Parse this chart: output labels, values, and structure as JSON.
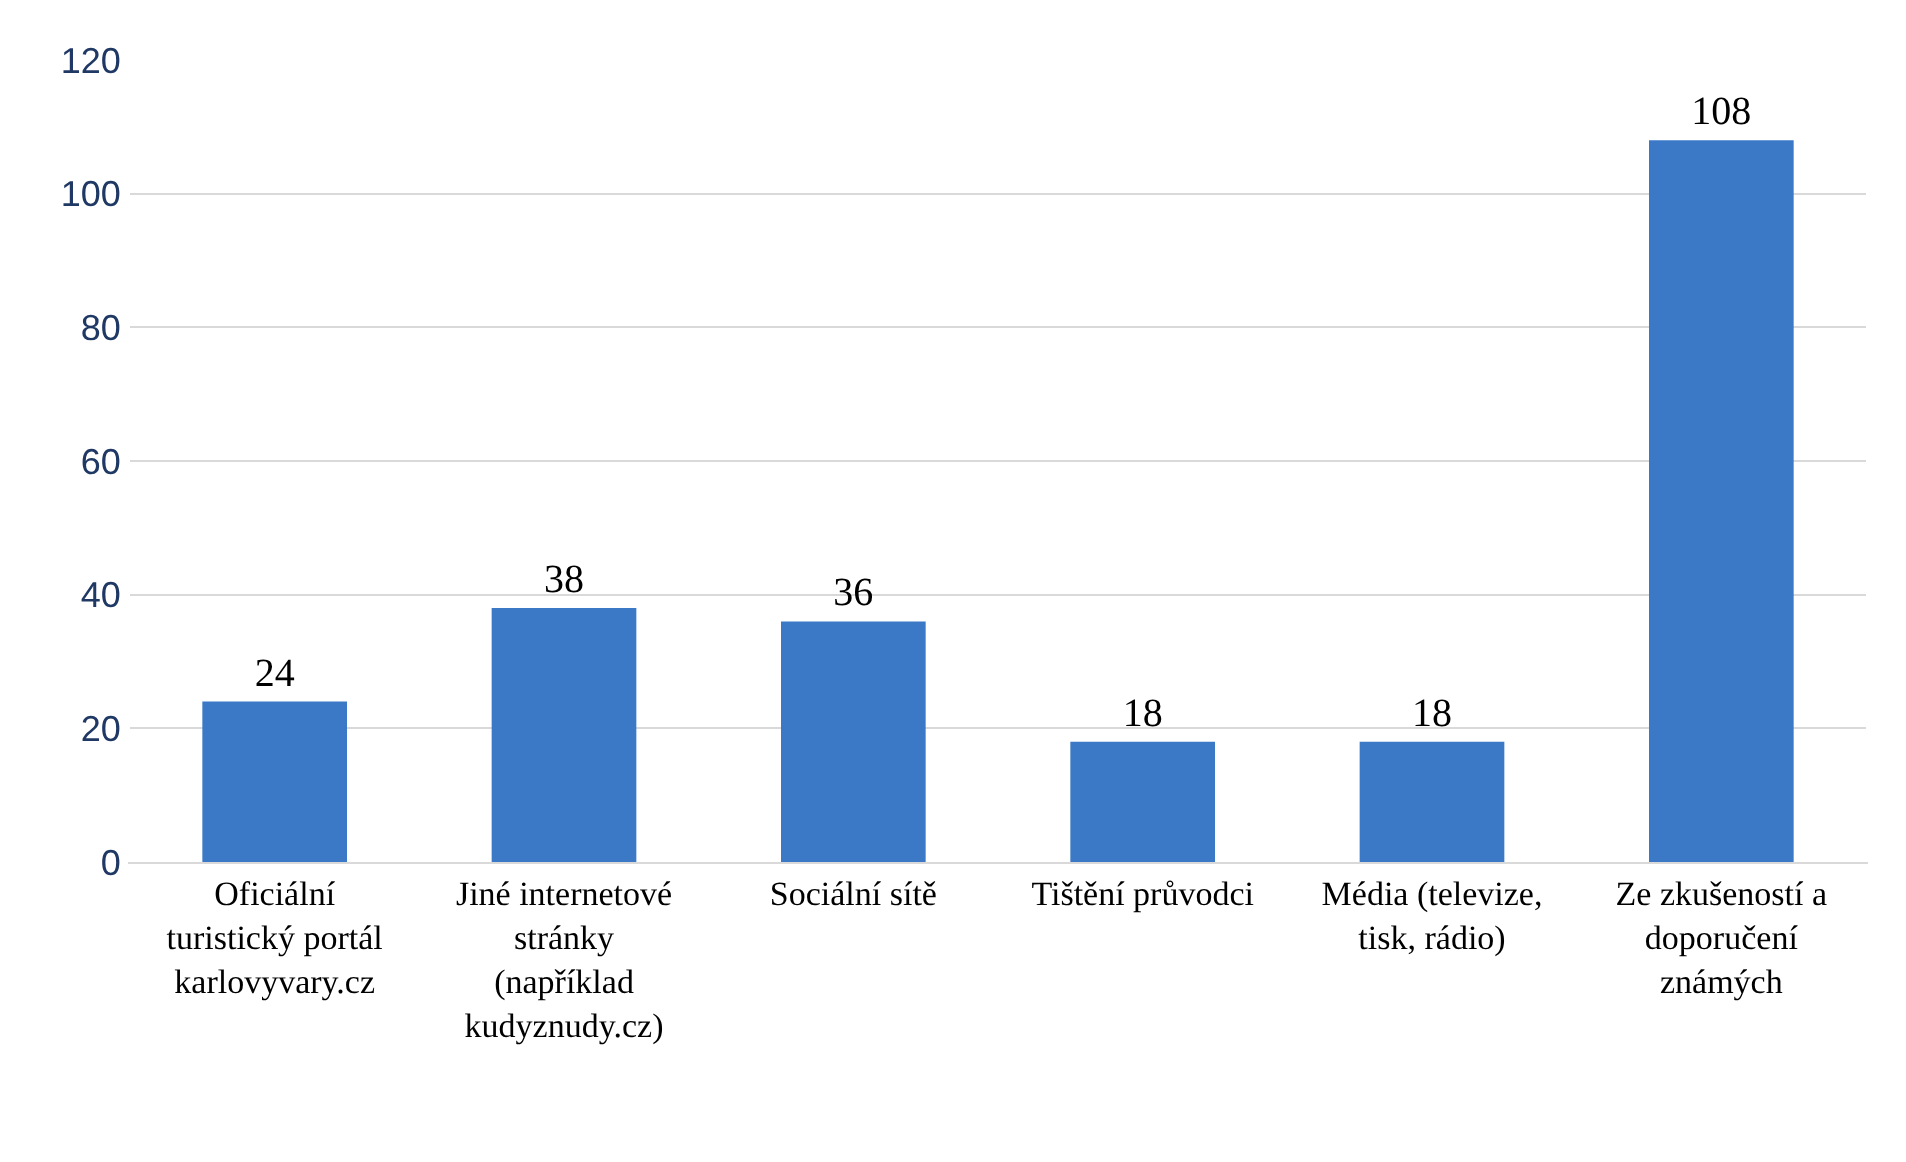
{
  "chart_data": {
    "type": "bar",
    "categories": [
      "Oficiální turistický portál karlovyvary.cz",
      "Jiné internetové stránky (například kudyznudy.cz)",
      "Sociální sítě",
      "Tištění průvodci",
      "Média (televize, tisk, rádio)",
      "Ze zkušeností a doporučení známých"
    ],
    "values": [
      24,
      38,
      36,
      18,
      18,
      108
    ],
    "color": "#3b79c6",
    "ylim": [
      0,
      120
    ],
    "yticks": [
      0,
      20,
      40,
      60,
      80,
      100,
      120
    ],
    "grid": "y",
    "data_labels": true
  }
}
